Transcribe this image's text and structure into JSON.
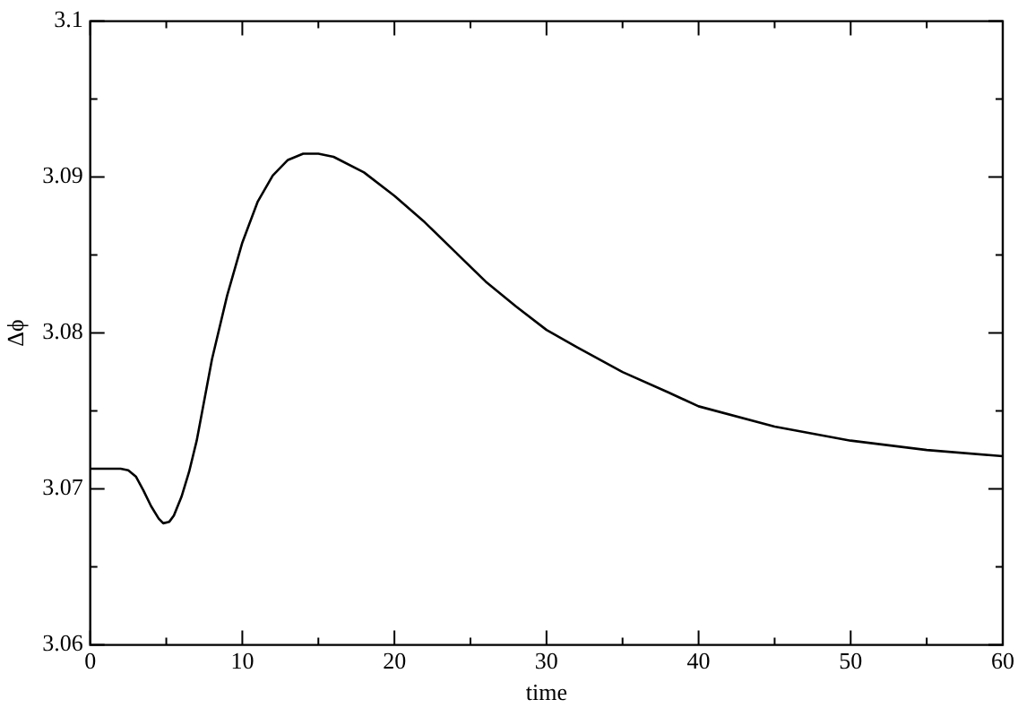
{
  "chart_data": {
    "type": "line",
    "xlabel": "time",
    "ylabel": "Δϕ",
    "x": [
      0,
      1,
      2,
      2.5,
      3,
      3.5,
      4,
      4.5,
      4.8,
      5.2,
      5.5,
      6,
      6.5,
      7,
      7.5,
      8,
      9,
      10,
      11,
      12,
      13,
      14,
      15,
      16,
      18,
      20,
      22,
      24,
      26,
      28,
      30,
      32,
      35,
      38,
      40,
      45,
      50,
      55,
      60
    ],
    "series": [
      {
        "color": "#000000",
        "values": [
          3.0713,
          3.0713,
          3.0713,
          3.0712,
          3.0708,
          3.0699,
          3.0689,
          3.0681,
          3.0678,
          3.0679,
          3.0683,
          3.0695,
          3.0711,
          3.0731,
          3.0757,
          3.0783,
          3.0824,
          3.0858,
          3.0884,
          3.0901,
          3.0911,
          3.0915,
          3.0915,
          3.0913,
          3.0903,
          3.0888,
          3.0871,
          3.0852,
          3.0833,
          3.0817,
          3.0802,
          3.0791,
          3.0775,
          3.0762,
          3.0753,
          3.074,
          3.0731,
          3.0725,
          3.0721
        ]
      }
    ],
    "xlim": [
      0,
      60
    ],
    "xticks": [
      0,
      10,
      20,
      30,
      40,
      50,
      60
    ],
    "ylim": [
      3.06,
      3.1
    ],
    "yticks": [
      3.06,
      3.07,
      3.08,
      3.09,
      3.1
    ],
    "grid": false,
    "legend": false,
    "marker": "none",
    "line_style": "solid"
  }
}
